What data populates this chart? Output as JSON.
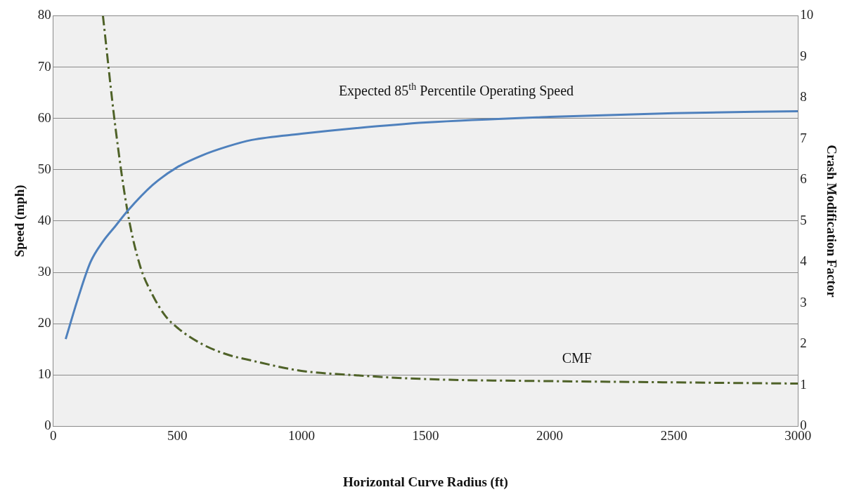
{
  "chart_data": {
    "type": "line",
    "xlabel": "Horizontal Curve Radius (ft)",
    "ylabel": "Speed (mph)",
    "y2label": "Crash Modification Factor",
    "xlim": [
      0,
      3000
    ],
    "xticks": [
      0,
      500,
      1000,
      1500,
      2000,
      2500,
      3000
    ],
    "ylim": [
      0,
      80
    ],
    "yticks": [
      0,
      10,
      20,
      30,
      40,
      50,
      60,
      70,
      80
    ],
    "y2lim": [
      0,
      10
    ],
    "y2ticks": [
      0,
      1,
      2,
      3,
      4,
      5,
      6,
      7,
      8,
      9,
      10
    ],
    "grid": "y",
    "legend": false,
    "series": [
      {
        "name": "Expected 85$^{th}$ Percentile Operating Speed",
        "color": "#4f81bd",
        "line_style": "solid",
        "x": [
          50,
          100,
          150,
          200,
          250,
          300,
          400,
          500,
          600,
          700,
          800,
          1000,
          1200,
          1500,
          2000,
          2500,
          3000
        ],
        "values": [
          17,
          25,
          32,
          36,
          39,
          42,
          47,
          50.5,
          52.8,
          54.5,
          55.8,
          57,
          58,
          59.2,
          60.3,
          61,
          61.4
        ]
      },
      {
        "name": "CMF",
        "color": "#4f6228",
        "line_style": "dashed",
        "axis": "y2",
        "x": [
          200,
          250,
          300,
          350,
          400,
          450,
          500,
          600,
          700,
          800,
          1000,
          1200,
          1500,
          2000,
          2500,
          3000
        ],
        "values": [
          10,
          7.3,
          5.2,
          3.9,
          3.2,
          2.7,
          2.4,
          2,
          1.75,
          1.6,
          1.35,
          1.25,
          1.15,
          1.1,
          1.07,
          1.04
        ]
      }
    ]
  }
}
